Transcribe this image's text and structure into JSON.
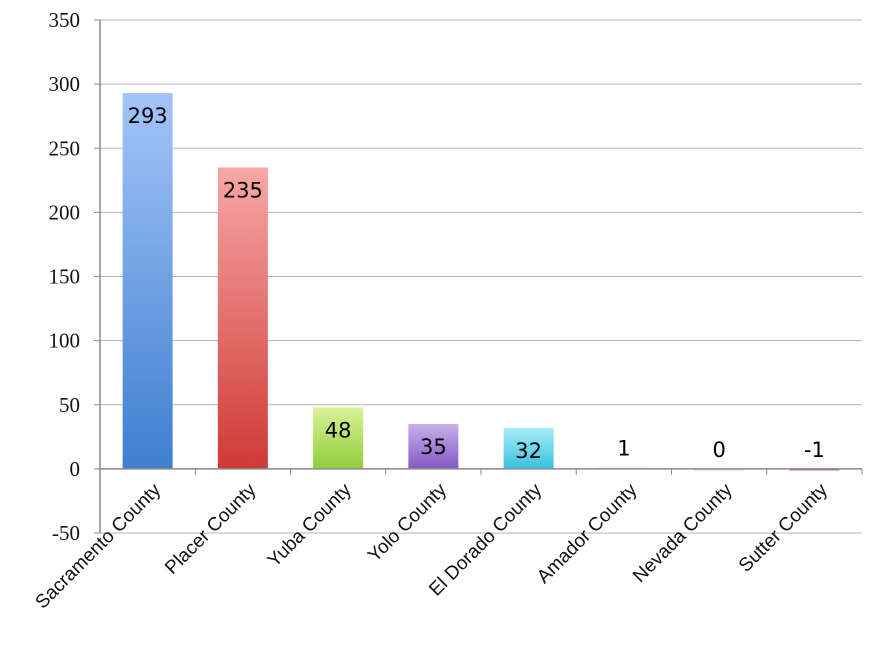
{
  "chart_data": {
    "type": "bar",
    "title": "",
    "xlabel": "",
    "ylabel": "",
    "categories": [
      "Sacramento County",
      "Placer County",
      "Yuba County",
      "Yolo County",
      "El Dorado County",
      "Amador County",
      "Nevada County",
      "Sutter County"
    ],
    "values": [
      293,
      235,
      48,
      35,
      32,
      1,
      0,
      -1
    ],
    "data_labels": [
      "293",
      "235",
      "48",
      "35",
      "32",
      "1",
      "0",
      "-1"
    ],
    "ylim": [
      -50,
      350
    ],
    "yticks": [
      -50,
      0,
      50,
      100,
      150,
      200,
      250,
      300,
      350
    ],
    "ytick_labels": [
      "-50",
      "0",
      "50",
      "100",
      "150",
      "200",
      "250",
      "300",
      "350"
    ],
    "grid": true,
    "legend": "none",
    "colors": [
      {
        "top": "#a3c4f7",
        "bottom": "#3f7fd0"
      },
      {
        "top": "#f7a7a5",
        "bottom": "#cf3a36"
      },
      {
        "top": "#d9f299",
        "bottom": "#8fce3a"
      },
      {
        "top": "#c7b0ea",
        "bottom": "#8159c4"
      },
      {
        "top": "#a8ecf7",
        "bottom": "#37c2e0"
      },
      {
        "top": "#fbd0b0",
        "bottom": "#f3a366"
      },
      {
        "top": "#eeeeee",
        "bottom": "#cccccc"
      },
      {
        "top": "#e8a0a0",
        "bottom": "#b04040"
      }
    ],
    "grid_color": "#b3b3b3",
    "axis_color": "#8a8a8a"
  }
}
